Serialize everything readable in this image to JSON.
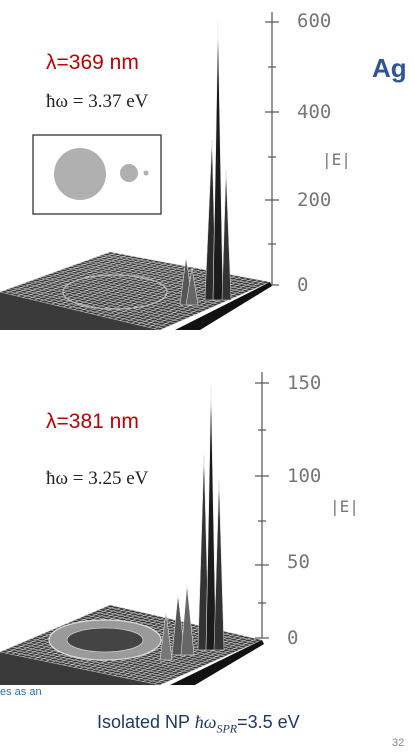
{
  "brand_label": "Ag",
  "panel_top": {
    "wavelength": "λ=369 nm",
    "energy": "ħω = 3.37 eV",
    "z_ticks": [
      "600",
      "400",
      "200",
      "0"
    ],
    "z_label": "|E|"
  },
  "panel_bottom": {
    "wavelength": "λ=381 nm",
    "energy": "ħω = 3.25 eV",
    "z_ticks": [
      "150",
      "100",
      "50",
      "0"
    ],
    "z_label": "|E|"
  },
  "footnote": "es as an",
  "caption_prefix": "Isolated NP ",
  "caption_symbol": "ħω",
  "caption_subscript": "SPR",
  "caption_suffix": "=3.5 eV",
  "page_number": "32",
  "colors": {
    "red_label": "#c00000",
    "brand": "#2e5597",
    "caption": "#1f3864",
    "axis": "#777777"
  }
}
